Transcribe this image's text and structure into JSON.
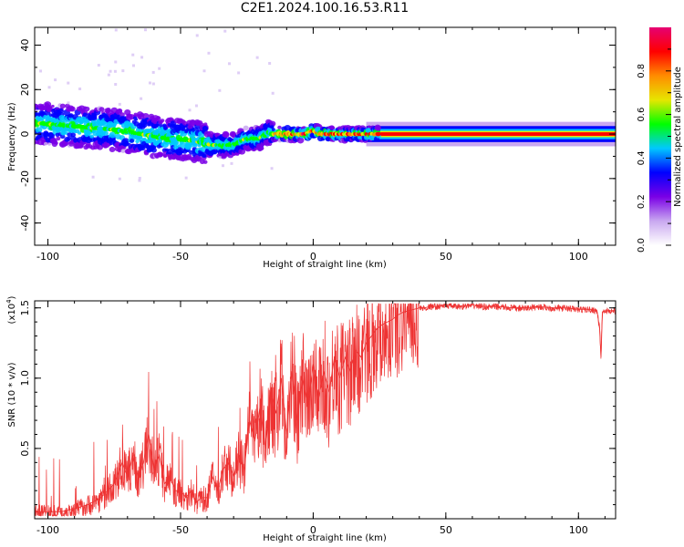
{
  "title": "C2E1.2024.100.16.53.R11",
  "chart_data": [
    {
      "type": "heatmap",
      "xlabel": "Height of straight line (km)",
      "ylabel": "Frequency (Hz)",
      "xlim": [
        -105,
        114
      ],
      "ylim": [
        -50,
        48
      ],
      "x_ticks": [
        "-100",
        "-50",
        "0",
        "50",
        "100"
      ],
      "x_tick_values": [
        -100,
        -50,
        0,
        50,
        100
      ],
      "y_ticks": [
        "40",
        "20",
        "0",
        "-20",
        "-40"
      ],
      "y_tick_values": [
        40,
        20,
        0,
        -20,
        -40
      ],
      "ridge": [
        {
          "x": -105,
          "y": 5
        },
        {
          "x": -95,
          "y": 4
        },
        {
          "x": -85,
          "y": 3
        },
        {
          "x": -75,
          "y": 2
        },
        {
          "x": -65,
          "y": 0
        },
        {
          "x": -55,
          "y": -2
        },
        {
          "x": -45,
          "y": -3
        },
        {
          "x": -38,
          "y": -5
        },
        {
          "x": -30,
          "y": -5
        },
        {
          "x": -25,
          "y": -2
        },
        {
          "x": -20,
          "y": -2
        },
        {
          "x": -17,
          "y": 1
        },
        {
          "x": -15,
          "y": 0
        },
        {
          "x": -3,
          "y": 0
        },
        {
          "x": 0,
          "y": 1.5
        },
        {
          "x": 3,
          "y": 0
        },
        {
          "x": 114,
          "y": 0
        }
      ],
      "colorbar": {
        "label": "Normalized spectral amplitude",
        "ticks": [
          "0.0",
          "0.2",
          "0.4",
          "0.6",
          "0.8"
        ],
        "tick_values": [
          0.0,
          0.2,
          0.4,
          0.6,
          0.8
        ],
        "range": [
          0,
          1
        ],
        "colors": [
          "#ffffff",
          "#c9a8f0",
          "#7a00e6",
          "#0000ff",
          "#00c8ff",
          "#00ff00",
          "#e6e600",
          "#ff8c00",
          "#ff0000",
          "#e60073"
        ]
      }
    },
    {
      "type": "line",
      "xlabel": "Height of straight line (km)",
      "ylabel": "SNR (10 * v/v)",
      "multiplier": "(x10",
      "multiplier_exp": "4",
      "multiplier_close": ")",
      "xlim": [
        -105,
        114
      ],
      "ylim": [
        0,
        1.55
      ],
      "x_ticks": [
        "-100",
        "-50",
        "0",
        "50",
        "100"
      ],
      "x_tick_values": [
        -100,
        -50,
        0,
        50,
        100
      ],
      "y_ticks": [
        "1.5",
        "1.0",
        "0.5"
      ],
      "y_tick_values": [
        1.5,
        1.0,
        0.5
      ],
      "series": [
        {
          "color": "#ee3333",
          "x": [
            -105,
            -100,
            -95,
            -90,
            -85,
            -80,
            -75,
            -72,
            -70,
            -68,
            -66,
            -64,
            -62,
            -60,
            -58,
            -56,
            -54,
            -52,
            -50,
            -48,
            -46,
            -44,
            -42,
            -40,
            -38,
            -36,
            -34,
            -32,
            -30,
            -28,
            -26,
            -24,
            -22,
            -20,
            -18,
            -16,
            -14,
            -12,
            -10,
            -8,
            -6,
            -4,
            -2,
            0,
            2,
            4,
            6,
            8,
            10,
            12,
            14,
            16,
            18,
            20,
            22,
            24,
            26,
            28,
            30,
            32,
            34,
            36,
            38,
            40,
            42,
            44,
            46,
            50,
            55,
            60,
            65,
            70,
            75,
            80,
            85,
            90,
            95,
            100,
            105,
            107,
            108,
            108.5,
            109,
            110,
            114
          ],
          "y": [
            0.05,
            0.05,
            0.05,
            0.07,
            0.1,
            0.15,
            0.25,
            0.4,
            0.3,
            0.45,
            0.3,
            0.4,
            0.6,
            0.35,
            0.45,
            0.25,
            0.3,
            0.2,
            0.2,
            0.15,
            0.2,
            0.12,
            0.15,
            0.15,
            0.3,
            0.2,
            0.35,
            0.4,
            0.3,
            0.45,
            0.35,
            0.7,
            0.55,
            0.8,
            0.5,
            0.9,
            0.75,
            1.0,
            0.6,
            1.05,
            0.7,
            1.0,
            0.8,
            1.1,
            0.85,
            1.05,
            0.9,
            1.15,
            1.0,
            1.15,
            1.05,
            1.2,
            1.15,
            1.25,
            1.3,
            1.35,
            1.38,
            1.4,
            1.42,
            1.45,
            1.47,
            1.48,
            1.49,
            1.5,
            1.5,
            1.51,
            1.51,
            1.52,
            1.51,
            1.52,
            1.51,
            1.51,
            1.5,
            1.5,
            1.51,
            1.5,
            1.5,
            1.49,
            1.49,
            1.48,
            1.35,
            1.15,
            1.47,
            1.48,
            1.48
          ]
        }
      ]
    }
  ]
}
